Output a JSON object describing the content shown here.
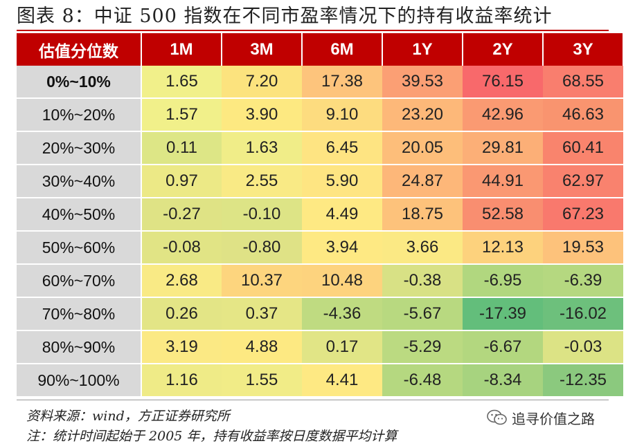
{
  "title": "图表 8：中证 500 指数在不同市盈率情况下的持有收益率统计",
  "table": {
    "corner_label": "估值分位数",
    "headers": [
      "1M",
      "3M",
      "6M",
      "1Y",
      "2Y",
      "3Y"
    ],
    "rows": [
      {
        "label": "0%~10%",
        "values": [
          "1.65",
          "7.20",
          "17.38",
          "39.53",
          "76.15",
          "68.55"
        ],
        "colors": [
          "#f1f08a",
          "#fce37e",
          "#fdc47c",
          "#fb9f74",
          "#f8696b",
          "#f97e6e"
        ]
      },
      {
        "label": "10%~20%",
        "values": [
          "1.57",
          "3.90",
          "9.10",
          "23.20",
          "42.96",
          "46.63"
        ],
        "colors": [
          "#f1f08a",
          "#fde981",
          "#fddc7f",
          "#fdb879",
          "#fa9a72",
          "#f9946f"
        ]
      },
      {
        "label": "20%~30%",
        "values": [
          "0.11",
          "1.63",
          "6.45",
          "20.05",
          "29.81",
          "60.41"
        ],
        "colors": [
          "#dde686",
          "#f0ed88",
          "#fee482",
          "#fdbe7a",
          "#fcaf77",
          "#f9846d"
        ]
      },
      {
        "label": "30%~40%",
        "values": [
          "0.97",
          "2.55",
          "5.90",
          "24.87",
          "44.91",
          "62.97"
        ],
        "colors": [
          "#ece986",
          "#f9ea85",
          "#fee582",
          "#fdb779",
          "#fa9872",
          "#f9826e"
        ]
      },
      {
        "label": "40%~50%",
        "values": [
          "-0.27",
          "-0.10",
          "4.49",
          "18.75",
          "52.58",
          "67.23"
        ],
        "colors": [
          "#dfe385",
          "#dde486",
          "#fee983",
          "#fdc27b",
          "#f98e70",
          "#f9796d"
        ]
      },
      {
        "label": "50%~60%",
        "values": [
          "-0.08",
          "-0.80",
          "3.94",
          "3.66",
          "12.13",
          "19.53"
        ],
        "colors": [
          "#e1e485",
          "#dfe286",
          "#fee983",
          "#fbe984",
          "#fdd27d",
          "#fdc27b"
        ]
      },
      {
        "label": "60%~70%",
        "values": [
          "2.68",
          "10.37",
          "10.48",
          "-0.38",
          "-6.95",
          "-6.39"
        ],
        "colors": [
          "#f9ea85",
          "#fdd57e",
          "#fdd37e",
          "#d8e185",
          "#b1d77f",
          "#b5d880"
        ]
      },
      {
        "label": "70%~80%",
        "values": [
          "0.26",
          "0.37",
          "-4.36",
          "-5.67",
          "-17.39",
          "-16.02"
        ],
        "colors": [
          "#e3e586",
          "#e5e686",
          "#bfdb81",
          "#b8d980",
          "#63be7b",
          "#6dc07c"
        ]
      },
      {
        "label": "80%~90%",
        "values": [
          "3.19",
          "4.88",
          "0.17",
          "-5.29",
          "-6.67",
          "-0.03"
        ],
        "colors": [
          "#fbe984",
          "#fde982",
          "#e1e586",
          "#bbda81",
          "#b3d77f",
          "#dce385"
        ]
      },
      {
        "label": "90%~100%",
        "values": [
          "1.16",
          "1.55",
          "4.41",
          "-6.48",
          "-8.34",
          "-12.35"
        ],
        "colors": [
          "#efeb87",
          "#f1ec87",
          "#fee983",
          "#b5d880",
          "#a7d37f",
          "#8bc97e"
        ]
      }
    ]
  },
  "footer": {
    "source": "资料来源：wind，方正证券研究所",
    "note": "注：统计时间起始于 2005 年，持有收益率按日度数据平均计算",
    "brand_icon": "wechat-icon",
    "brand_text": "追寻价值之路"
  }
}
